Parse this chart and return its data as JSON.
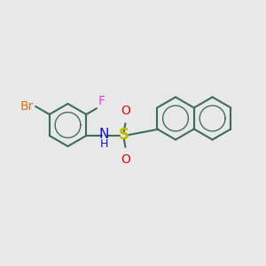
{
  "background_color": "#e8e8e8",
  "bond_color": "#3d6b5e",
  "bond_width": 1.5,
  "atom_colors": {
    "Br": "#cc7722",
    "F": "#dd44dd",
    "N": "#1111cc",
    "H": "#1111cc",
    "S": "#bbbb00",
    "O": "#cc1111"
  },
  "font_size": 10,
  "figsize": [
    3.0,
    3.0
  ],
  "dpi": 100,
  "xlim": [
    0,
    10
  ],
  "ylim": [
    0,
    10
  ]
}
